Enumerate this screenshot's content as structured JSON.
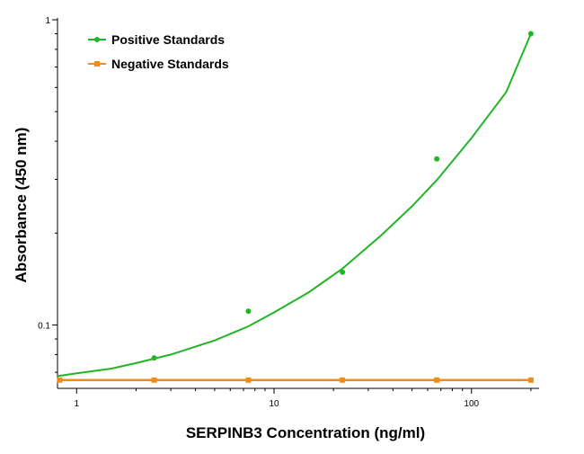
{
  "chart_data": {
    "type": "scatter",
    "xscale": "log",
    "yscale": "log",
    "xlim": [
      0.8,
      220
    ],
    "ylim": [
      0.078,
      1.0
    ],
    "xticks": [
      {
        "value": 1,
        "label": "1"
      },
      {
        "value": 10,
        "label": "10"
      },
      {
        "value": 100,
        "label": "100"
      }
    ],
    "yticks": [
      {
        "value": 0.1,
        "label": "0.1"
      },
      {
        "value": 1,
        "label": "1"
      }
    ],
    "xlabel": "SERPINB3 Concentration (ng/ml)",
    "ylabel": "Absorbance (450 nm)",
    "grid": false,
    "legend_position": "top-left",
    "series": [
      {
        "name": "Positive Standards",
        "color": "#22b525",
        "marker": "circle",
        "fit": "curve",
        "x": [
          2.47,
          7.41,
          22.2,
          66.7,
          200
        ],
        "y": [
          0.078,
          0.111,
          0.149,
          0.35,
          0.9
        ],
        "curve_x": [
          0.8,
          1,
          1.5,
          2,
          3,
          5,
          7.41,
          10,
          15,
          22.2,
          35,
          50,
          66.7,
          100,
          150,
          200
        ],
        "curve_y": [
          0.068,
          0.0695,
          0.072,
          0.075,
          0.08,
          0.089,
          0.099,
          0.11,
          0.128,
          0.153,
          0.197,
          0.245,
          0.298,
          0.41,
          0.58,
          0.9
        ]
      },
      {
        "name": "Negative Standards",
        "color": "#f08b1c",
        "marker": "square",
        "fit": "line",
        "x": [
          0.82,
          2.47,
          7.41,
          22.2,
          66.7,
          200
        ],
        "y": [
          0.066,
          0.066,
          0.066,
          0.066,
          0.066,
          0.066
        ]
      }
    ]
  }
}
